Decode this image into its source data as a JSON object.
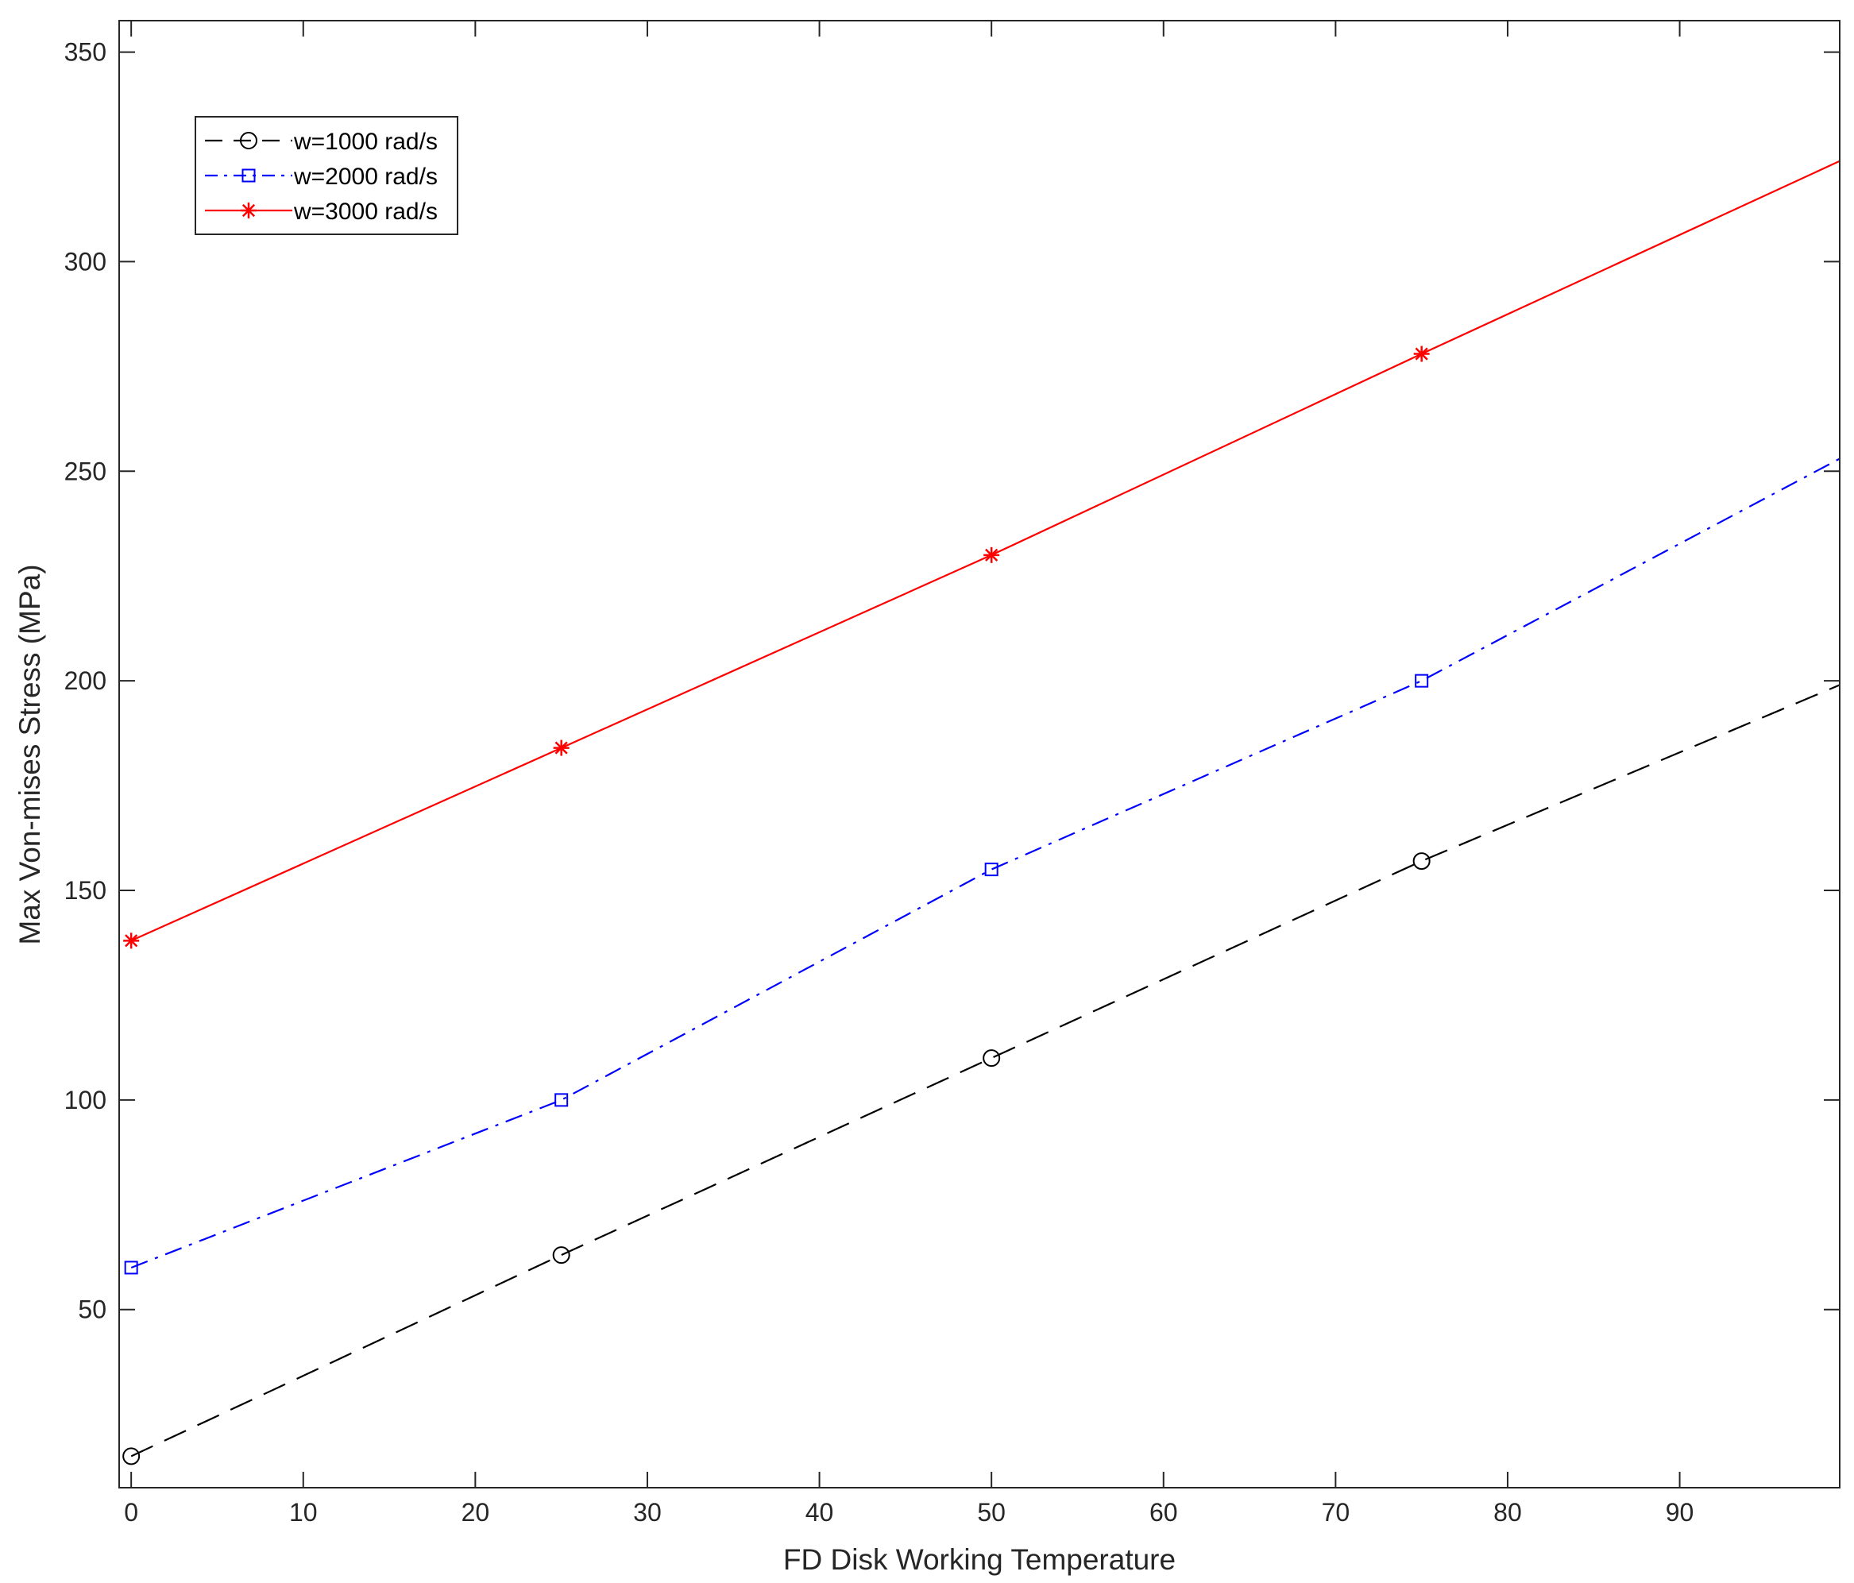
{
  "chart_data": {
    "type": "line",
    "title": "",
    "xlabel": "FD Disk Working Temperature",
    "ylabel": "Max Von-mises Stress (MPa)",
    "xlim": [
      -0.7,
      99.3
    ],
    "ylim": [
      7.5,
      357.5
    ],
    "xticks": [
      0,
      10,
      20,
      30,
      40,
      50,
      60,
      70,
      80,
      90
    ],
    "yticks": [
      50,
      100,
      150,
      200,
      250,
      300,
      350
    ],
    "grid": false,
    "legend_position": "top-left",
    "series": [
      {
        "name": "w=1000 rad/s",
        "color": "#000000",
        "line_style": "dashed",
        "marker": "circle",
        "x": [
          0,
          25,
          50,
          75,
          99.3
        ],
        "y": [
          15,
          63,
          110,
          157,
          199
        ],
        "marker_x": [
          0,
          25,
          50,
          75
        ],
        "marker_y": [
          15,
          63,
          110,
          157
        ]
      },
      {
        "name": "w=2000 rad/s",
        "color": "#0000ff",
        "line_style": "dash-dot",
        "marker": "square",
        "x": [
          0,
          25,
          50,
          75,
          99.3
        ],
        "y": [
          60,
          100,
          155,
          200,
          253
        ],
        "marker_x": [
          0,
          25,
          50,
          75
        ],
        "marker_y": [
          60,
          100,
          155,
          200
        ]
      },
      {
        "name": "w=3000 rad/s",
        "color": "#ff0000",
        "line_style": "solid",
        "marker": "asterisk",
        "x": [
          0,
          25,
          50,
          75,
          99.3
        ],
        "y": [
          138,
          184,
          230,
          278,
          324
        ],
        "marker_x": [
          0,
          25,
          50,
          75
        ],
        "marker_y": [
          138,
          184,
          230,
          278
        ]
      }
    ]
  }
}
